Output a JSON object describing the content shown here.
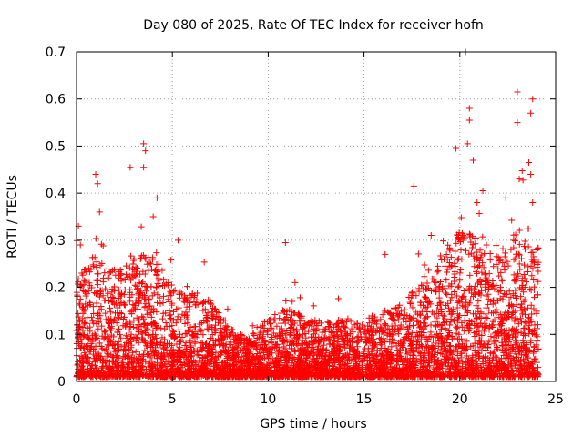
{
  "chart_data": {
    "type": "scatter",
    "title": "Day 080 of 2025, Rate Of TEC Index for receiver hofn",
    "xlabel": "GPS time / hours",
    "ylabel": "ROTI / TECUs",
    "xlim": [
      0,
      25
    ],
    "ylim": [
      0,
      0.7
    ],
    "xticks": [
      0,
      5,
      10,
      15,
      20,
      25
    ],
    "xtick_labels": [
      "0",
      "5",
      "10",
      "15",
      "20",
      "25"
    ],
    "yticks": [
      0,
      0.1,
      0.2,
      0.3,
      0.4,
      0.5,
      0.6,
      0.7
    ],
    "ytick_labels": [
      "0",
      "0.1",
      "0.2",
      "0.3",
      "0.4",
      "0.5",
      "0.6",
      "0.7"
    ],
    "grid": true,
    "marker": "+",
    "series_color": "#ff0000",
    "envelope": {
      "description": "approximate upper envelope of the dense ROTI cloud per hour (data units)",
      "hours": [
        0,
        1,
        2,
        3,
        4,
        5,
        6,
        7,
        8,
        9,
        10,
        11,
        12,
        13,
        14,
        15,
        16,
        17,
        18,
        19,
        20,
        21,
        22,
        23,
        24
      ],
      "typical_high": [
        0.2,
        0.25,
        0.22,
        0.25,
        0.25,
        0.18,
        0.17,
        0.16,
        0.1,
        0.08,
        0.12,
        0.14,
        0.12,
        0.11,
        0.12,
        0.12,
        0.13,
        0.15,
        0.2,
        0.25,
        0.3,
        0.28,
        0.25,
        0.3,
        0.3
      ]
    },
    "notable_points": [
      {
        "x": 0.1,
        "y": 0.33
      },
      {
        "x": 0.2,
        "y": 0.29
      },
      {
        "x": 1.0,
        "y": 0.44
      },
      {
        "x": 1.1,
        "y": 0.42
      },
      {
        "x": 1.2,
        "y": 0.36
      },
      {
        "x": 2.8,
        "y": 0.455
      },
      {
        "x": 3.5,
        "y": 0.505
      },
      {
        "x": 3.6,
        "y": 0.49
      },
      {
        "x": 3.5,
        "y": 0.455
      },
      {
        "x": 4.2,
        "y": 0.39
      },
      {
        "x": 4.0,
        "y": 0.35
      },
      {
        "x": 5.3,
        "y": 0.3
      },
      {
        "x": 10.9,
        "y": 0.295
      },
      {
        "x": 11.4,
        "y": 0.21
      },
      {
        "x": 16.1,
        "y": 0.27
      },
      {
        "x": 17.6,
        "y": 0.415
      },
      {
        "x": 19.8,
        "y": 0.495
      },
      {
        "x": 20.3,
        "y": 0.7
      },
      {
        "x": 20.5,
        "y": 0.58
      },
      {
        "x": 20.5,
        "y": 0.555
      },
      {
        "x": 20.4,
        "y": 0.505
      },
      {
        "x": 20.7,
        "y": 0.47
      },
      {
        "x": 20.9,
        "y": 0.38
      },
      {
        "x": 21.2,
        "y": 0.405
      },
      {
        "x": 22.4,
        "y": 0.39
      },
      {
        "x": 23.0,
        "y": 0.615
      },
      {
        "x": 23.0,
        "y": 0.55
      },
      {
        "x": 23.1,
        "y": 0.43
      },
      {
        "x": 23.8,
        "y": 0.6
      },
      {
        "x": 23.7,
        "y": 0.57
      },
      {
        "x": 23.6,
        "y": 0.465
      },
      {
        "x": 23.7,
        "y": 0.44
      },
      {
        "x": 23.8,
        "y": 0.38
      }
    ]
  }
}
